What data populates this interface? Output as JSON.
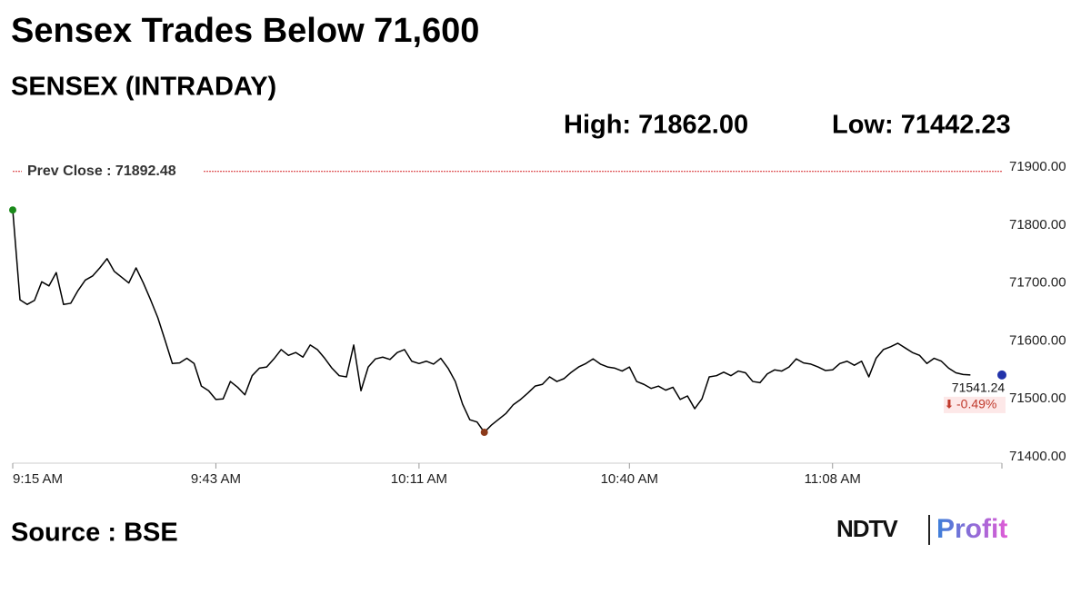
{
  "chart_data": {
    "type": "line",
    "title": "Sensex Trades Below 71,600",
    "subtitle": "SENSEX (INTRADAY)",
    "high_text": "High: 71862.00",
    "low_text": "Low: 71442.23",
    "prev_close_text": "Prev Close : 71892.48",
    "prev_close": 71892.48,
    "change_text": "-0.49%",
    "source": "Source : BSE",
    "x": [
      "9:15 AM",
      "9:16 AM",
      "9:17 AM",
      "9:18 AM",
      "9:19 AM",
      "9:20 AM",
      "9:21 AM",
      "9:22 AM",
      "9:23 AM",
      "9:24 AM",
      "9:25 AM",
      "9:26 AM",
      "9:27 AM",
      "9:28 AM",
      "9:29 AM",
      "9:30 AM",
      "9:31 AM",
      "9:32 AM",
      "9:33 AM",
      "9:34 AM",
      "9:35 AM",
      "9:36 AM",
      "9:37 AM",
      "9:38 AM",
      "9:39 AM",
      "9:40 AM",
      "9:41 AM",
      "9:42 AM",
      "9:43 AM",
      "9:44 AM",
      "9:45 AM",
      "9:46 AM",
      "9:47 AM",
      "9:48 AM",
      "9:49 AM",
      "9:50 AM",
      "9:51 AM",
      "9:52 AM",
      "9:53 AM",
      "9:54 AM",
      "9:55 AM",
      "9:56 AM",
      "9:57 AM",
      "9:58 AM",
      "9:59 AM",
      "10:00 AM",
      "10:01 AM",
      "10:02 AM",
      "10:03 AM",
      "10:04 AM",
      "10:05 AM",
      "10:06 AM",
      "10:07 AM",
      "10:08 AM",
      "10:09 AM",
      "10:10 AM",
      "10:11 AM",
      "10:12 AM",
      "10:13 AM",
      "10:14 AM",
      "10:15 AM",
      "10:16 AM",
      "10:17 AM",
      "10:18 AM",
      "10:19 AM",
      "10:20 AM",
      "10:21 AM",
      "10:22 AM",
      "10:23 AM",
      "10:24 AM",
      "10:25 AM",
      "10:26 AM",
      "10:27 AM",
      "10:28 AM",
      "10:29 AM",
      "10:30 AM",
      "10:31 AM",
      "10:32 AM",
      "10:33 AM",
      "10:34 AM",
      "10:35 AM",
      "10:36 AM",
      "10:37 AM",
      "10:38 AM",
      "10:39 AM",
      "10:40 AM",
      "10:41 AM",
      "10:42 AM",
      "10:43 AM",
      "10:44 AM",
      "10:45 AM",
      "10:46 AM",
      "10:47 AM",
      "10:48 AM",
      "10:49 AM",
      "10:50 AM",
      "10:51 AM",
      "10:52 AM",
      "10:53 AM",
      "10:54 AM",
      "10:55 AM",
      "10:56 AM",
      "10:57 AM",
      "10:58 AM",
      "10:59 AM",
      "11:00 AM",
      "11:01 AM",
      "11:02 AM",
      "11:03 AM",
      "11:04 AM",
      "11:05 AM",
      "11:06 AM",
      "11:07 AM",
      "11:08 AM",
      "11:09 AM",
      "11:10 AM",
      "11:11 AM",
      "11:12 AM",
      "11:13 AM",
      "11:14 AM",
      "11:15 AM",
      "11:16 AM",
      "11:17 AM",
      "11:18 AM",
      "11:19 AM",
      "11:20 AM",
      "11:21 AM",
      "11:22 AM",
      "11:23 AM",
      "11:24 AM",
      "11:25 AM",
      "11:26 AM",
      "11:27 AM"
    ],
    "series": [
      {
        "name": "SENSEX",
        "color": "#000000",
        "values": [
          71826,
          71671,
          71663,
          71670,
          71702,
          71695,
          71718,
          71663,
          71665,
          71687,
          71705,
          71712,
          71726,
          71742,
          71720,
          71710,
          71700,
          71726,
          71700,
          71671,
          71640,
          71601,
          71561,
          71562,
          71570,
          71561,
          71522,
          71514,
          71499,
          71500,
          71530,
          71520,
          71507,
          71540,
          71553,
          71555,
          71569,
          71585,
          71575,
          71580,
          71572,
          71593,
          71585,
          71570,
          71553,
          71540,
          71538,
          71593,
          71514,
          71555,
          71569,
          71572,
          71568,
          71580,
          71585,
          71565,
          71561,
          71565,
          71560,
          71570,
          71553,
          71530,
          71491,
          71464,
          71460,
          71442.23,
          71455,
          71465,
          71475,
          71490,
          71499,
          71510,
          71522,
          71525,
          71538,
          71530,
          71535,
          71546,
          71555,
          71561,
          71569,
          71560,
          71555,
          71553,
          71548,
          71555,
          71530,
          71525,
          71518,
          71522,
          71515,
          71520,
          71499,
          71505,
          71483,
          71500,
          71538,
          71540,
          71546,
          71540,
          71548,
          71545,
          71530,
          71528,
          71543,
          71550,
          71548,
          71555,
          71569,
          71562,
          71560,
          71555,
          71549,
          71550,
          71561,
          71565,
          71558,
          71565,
          71538,
          71570,
          71585,
          71590,
          71596,
          71588,
          71580,
          71575,
          71561,
          71570,
          71565,
          71553,
          71545,
          71542,
          71541.24
        ]
      }
    ],
    "ylim": [
      71400,
      71900
    ],
    "yticks": [
      {
        "value": 71400,
        "label": "71400.00"
      },
      {
        "value": 71500,
        "label": "71500.00"
      },
      {
        "value": 71600,
        "label": "71600.00"
      },
      {
        "value": 71700,
        "label": "71700.00"
      },
      {
        "value": 71800,
        "label": "71800.00"
      },
      {
        "value": 71900,
        "label": "71900.00"
      }
    ],
    "xticks": [
      "9:15 AM",
      "9:43 AM",
      "10:11 AM",
      "10:40 AM",
      "11:08 AM"
    ],
    "prev_close_color": "#d62728",
    "grid": false
  },
  "branding": {
    "logo": [
      "NDTV",
      "Profit"
    ]
  }
}
